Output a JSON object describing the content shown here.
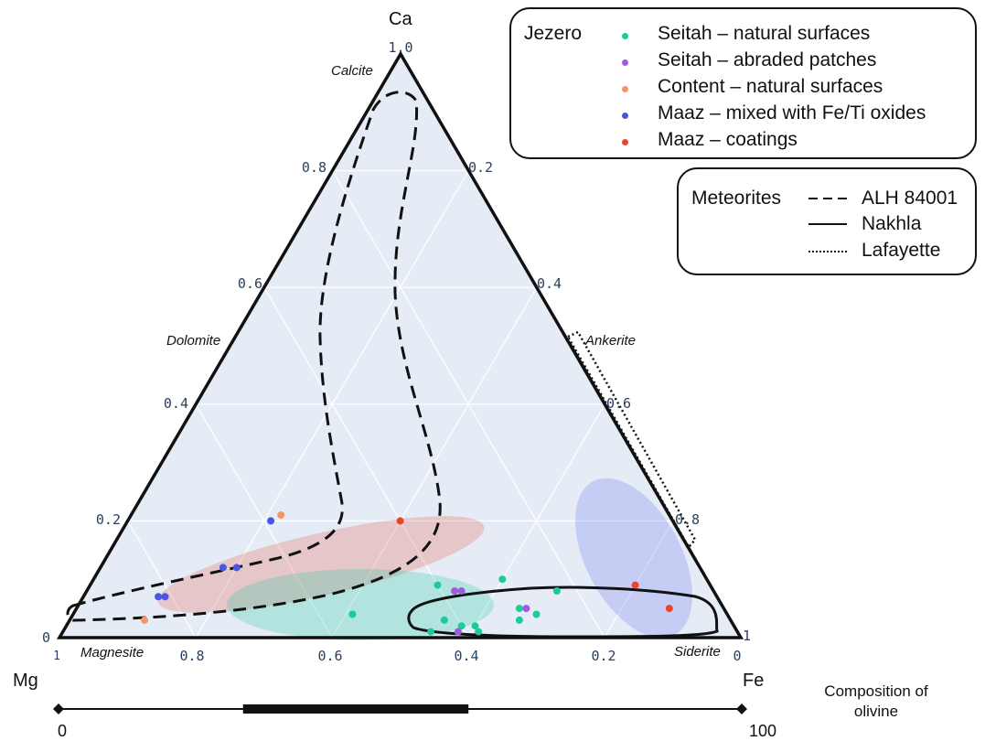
{
  "chart_data": {
    "type": "scatter",
    "subtype": "ternary",
    "apex_labels": {
      "top": "Ca",
      "left": "Mg",
      "right": "Fe"
    },
    "axis_ticks": {
      "left_edge": [
        "0.2",
        "0.4",
        "0.6",
        "0.8",
        "1.0"
      ],
      "right_edge": [
        "0.2",
        "0.4",
        "0.6",
        "0.8",
        "1"
      ],
      "bottom_edge": [
        "0.8",
        "0.6",
        "0.4",
        "0.2",
        "0"
      ],
      "corner_extras": {
        "bottom_left_zero": "0",
        "bottom_left_one": "1",
        "bottom_right_one": "1",
        "apex_one": "1"
      }
    },
    "mineral_labels": [
      "Calcite",
      "Dolomite",
      "Ankerite",
      "Magnesite",
      "Siderite"
    ],
    "legend_jezero": {
      "title": "Jezero",
      "entries": [
        {
          "name": "Seitah – natural surfaces",
          "color": "#1fc99a"
        },
        {
          "name": "Seitah – abraded patches",
          "color": "#a05ae0"
        },
        {
          "name": "Content – natural surfaces",
          "color": "#f0986a"
        },
        {
          "name": "Maaz – mixed with Fe/Ti oxides",
          "color": "#4a55e8"
        },
        {
          "name": "Maaz – coatings",
          "color": "#e8452f"
        }
      ]
    },
    "legend_meteorites": {
      "title": "Meteorites",
      "entries": [
        {
          "name": "ALH 84001",
          "style": "dashed"
        },
        {
          "name": "Nakhla",
          "style": "solid"
        },
        {
          "name": "Lafayette",
          "style": "dotted"
        }
      ]
    },
    "series": [
      {
        "group": "Seitah – natural surfaces",
        "color": "#1fc99a",
        "points": [
          [
            0.08,
            0.69
          ],
          [
            0.04,
            0.68
          ],
          [
            0.03,
            0.66
          ],
          [
            0.05,
            0.65
          ],
          [
            0.1,
            0.6
          ],
          [
            0.02,
            0.6
          ],
          [
            0.01,
            0.61
          ],
          [
            0.02,
            0.58
          ],
          [
            0.01,
            0.58
          ],
          [
            0.03,
            0.55
          ],
          [
            0.01,
            0.54
          ],
          [
            0.09,
            0.51
          ],
          [
            0.04,
            0.41
          ]
        ]
      },
      {
        "group": "Seitah – abraded patches",
        "color": "#a05ae0",
        "points": [
          [
            0.05,
            0.66
          ],
          [
            0.08,
            0.55
          ],
          [
            0.08,
            0.54
          ],
          [
            0.01,
            0.58
          ]
        ]
      },
      {
        "group": "Content – natural surfaces",
        "color": "#f0986a",
        "points": [
          [
            0.21,
            0.22
          ],
          [
            0.03,
            0.11
          ]
        ]
      },
      {
        "group": "Maaz – mixed with Fe/Ti oxides",
        "color": "#4a55e8",
        "points": [
          [
            0.2,
            0.21
          ],
          [
            0.12,
            0.2
          ],
          [
            0.12,
            0.18
          ],
          [
            0.07,
            0.12
          ],
          [
            0.07,
            0.11
          ]
        ]
      },
      {
        "group": "Maaz – coatings",
        "color": "#e8452f",
        "points": [
          [
            0.05,
            0.87
          ],
          [
            0.09,
            0.8
          ],
          [
            0.2,
            0.4
          ]
        ]
      }
    ],
    "regions": [
      {
        "name": "Maaz – coatings",
        "color": "#e8452f"
      },
      {
        "name": "Seitah – natural surfaces",
        "color": "#1fc99a"
      },
      {
        "name": "Maaz – mixed with Fe/Ti oxides",
        "color": "#4a55e8"
      }
    ],
    "olivine_scale": {
      "label": "Composition of olivine",
      "min": "0",
      "max": "100",
      "range_low": 27,
      "range_high": 60
    }
  }
}
